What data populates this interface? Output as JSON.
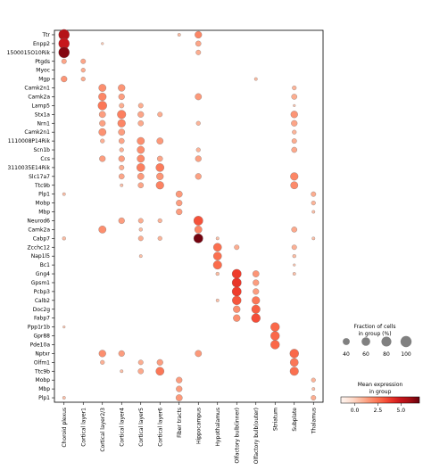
{
  "chart_data": {
    "type": "dotplot",
    "genes": [
      "Ttr",
      "Enpp2",
      "1500015O10Rik",
      "Ptgds",
      "Myoc",
      "Mgp",
      "Camk2n1",
      "Camk2a",
      "Lamp5",
      "Stx1a",
      "Nrn1",
      "Camk2n1",
      "1110008P14Rik",
      "Scn1b",
      "Ccs",
      "3110035E14Rik",
      "Slc17a7",
      "Ttc9b",
      "Plp1",
      "Mobp",
      "Mbp",
      "Neurod6",
      "Camk2a",
      "Cabp7",
      "Zcchc12",
      "Nap1l5",
      "Bc1",
      "Gng4",
      "Gpsm1",
      "Pcbp3",
      "Calb2",
      "Doc2g",
      "Fabp7",
      "Ppp1r1b",
      "Gpr88",
      "Pde10a",
      "Nptxr",
      "Olfm1",
      "Ttc9b",
      "Mobp",
      "Mbp",
      "Plp1"
    ],
    "groups": [
      "Choroid plexus",
      "Cortical layer1",
      "Cortical layer2/3",
      "Cortical layer4",
      "Cortical layer5",
      "Cortical layer6",
      "Fiber tracts",
      "Hippocampus",
      "Hypothalamus",
      "Olfactory bulb(inner)",
      "Olfactory bulb(outer)",
      "Striatum",
      "Subplate",
      "Thalamus"
    ],
    "cells": [
      [
        0,
        0,
        95,
        5.5
      ],
      [
        0,
        7,
        40,
        2.0
      ],
      [
        0,
        6,
        8,
        0.6
      ],
      [
        1,
        0,
        95,
        5.0
      ],
      [
        1,
        7,
        25,
        1.2
      ],
      [
        1,
        2,
        5,
        0.2
      ],
      [
        2,
        0,
        95,
        6.5
      ],
      [
        2,
        7,
        20,
        1.0
      ],
      [
        3,
        0,
        20,
        1.2
      ],
      [
        3,
        1,
        20,
        1.2
      ],
      [
        4,
        1,
        15,
        1.0
      ],
      [
        5,
        0,
        30,
        1.6
      ],
      [
        5,
        1,
        15,
        1.0
      ],
      [
        5,
        10,
        8,
        0.6
      ],
      [
        6,
        2,
        45,
        1.8
      ],
      [
        6,
        3,
        40,
        1.6
      ],
      [
        6,
        12,
        15,
        0.8
      ],
      [
        7,
        2,
        50,
        2.0
      ],
      [
        7,
        3,
        30,
        1.4
      ],
      [
        7,
        7,
        35,
        1.5
      ],
      [
        7,
        12,
        25,
        1.0
      ],
      [
        8,
        2,
        65,
        2.4
      ],
      [
        8,
        3,
        20,
        1.0
      ],
      [
        8,
        4,
        20,
        1.0
      ],
      [
        8,
        12,
        5,
        0.3
      ],
      [
        9,
        2,
        35,
        1.4
      ],
      [
        9,
        3,
        60,
        2.2
      ],
      [
        9,
        4,
        30,
        1.2
      ],
      [
        9,
        5,
        20,
        1.0
      ],
      [
        9,
        12,
        40,
        1.6
      ],
      [
        10,
        2,
        30,
        1.3
      ],
      [
        10,
        3,
        50,
        2.0
      ],
      [
        10,
        4,
        25,
        1.1
      ],
      [
        10,
        7,
        15,
        0.8
      ],
      [
        10,
        12,
        30,
        1.2
      ],
      [
        11,
        2,
        45,
        1.7
      ],
      [
        11,
        3,
        35,
        1.4
      ],
      [
        11,
        12,
        15,
        0.8
      ],
      [
        12,
        2,
        15,
        0.9
      ],
      [
        12,
        3,
        25,
        1.2
      ],
      [
        12,
        4,
        45,
        1.8
      ],
      [
        12,
        5,
        35,
        1.5
      ],
      [
        12,
        12,
        20,
        1.0
      ],
      [
        13,
        3,
        15,
        0.9
      ],
      [
        13,
        4,
        45,
        1.8
      ],
      [
        13,
        7,
        15,
        0.8
      ],
      [
        13,
        12,
        25,
        1.1
      ],
      [
        14,
        2,
        30,
        1.4
      ],
      [
        14,
        3,
        30,
        1.4
      ],
      [
        14,
        4,
        45,
        1.9
      ],
      [
        14,
        5,
        25,
        1.2
      ],
      [
        14,
        7,
        30,
        1.3
      ],
      [
        15,
        3,
        20,
        1.0
      ],
      [
        15,
        4,
        55,
        2.2
      ],
      [
        15,
        5,
        55,
        2.3
      ],
      [
        16,
        3,
        25,
        1.2
      ],
      [
        16,
        4,
        35,
        1.5
      ],
      [
        16,
        5,
        40,
        1.6
      ],
      [
        16,
        7,
        30,
        1.3
      ],
      [
        16,
        12,
        50,
        2.0
      ],
      [
        17,
        3,
        8,
        0.5
      ],
      [
        17,
        4,
        25,
        1.2
      ],
      [
        17,
        5,
        50,
        2.1
      ],
      [
        17,
        12,
        45,
        1.9
      ],
      [
        18,
        0,
        8,
        0.5
      ],
      [
        18,
        6,
        35,
        1.5
      ],
      [
        18,
        13,
        20,
        1.0
      ],
      [
        19,
        6,
        30,
        1.4
      ],
      [
        19,
        13,
        15,
        0.8
      ],
      [
        20,
        6,
        30,
        1.4
      ],
      [
        20,
        13,
        8,
        0.5
      ],
      [
        21,
        3,
        30,
        1.4
      ],
      [
        21,
        4,
        20,
        1.0
      ],
      [
        21,
        5,
        15,
        0.8
      ],
      [
        21,
        7,
        70,
        3.3
      ],
      [
        22,
        2,
        45,
        1.8
      ],
      [
        22,
        4,
        10,
        0.6
      ],
      [
        22,
        7,
        45,
        2.0
      ],
      [
        22,
        12,
        25,
        1.1
      ],
      [
        23,
        0,
        10,
        0.6
      ],
      [
        23,
        4,
        20,
        1.0
      ],
      [
        23,
        5,
        15,
        0.8
      ],
      [
        23,
        7,
        70,
        6.8
      ],
      [
        23,
        8,
        8,
        0.5
      ],
      [
        23,
        13,
        8,
        0.5
      ],
      [
        24,
        8,
        55,
        2.6
      ],
      [
        24,
        9,
        20,
        1.0
      ],
      [
        24,
        12,
        20,
        0.9
      ],
      [
        25,
        4,
        8,
        0.5
      ],
      [
        25,
        8,
        55,
        2.6
      ],
      [
        25,
        12,
        10,
        0.6
      ],
      [
        26,
        8,
        60,
        2.7
      ],
      [
        26,
        12,
        5,
        0.3
      ],
      [
        27,
        8,
        10,
        0.6
      ],
      [
        27,
        9,
        70,
        3.8
      ],
      [
        27,
        10,
        35,
        1.6
      ],
      [
        27,
        12,
        8,
        0.5
      ],
      [
        28,
        9,
        70,
        4.0
      ],
      [
        28,
        10,
        30,
        1.4
      ],
      [
        29,
        9,
        70,
        3.8
      ],
      [
        29,
        10,
        30,
        1.4
      ],
      [
        30,
        8,
        8,
        0.5
      ],
      [
        30,
        9,
        65,
        3.2
      ],
      [
        30,
        10,
        50,
        2.4
      ],
      [
        31,
        9,
        40,
        1.8
      ],
      [
        31,
        10,
        60,
        3.0
      ],
      [
        32,
        9,
        40,
        1.8
      ],
      [
        32,
        10,
        65,
        3.4
      ],
      [
        33,
        0,
        5,
        0.3
      ],
      [
        33,
        11,
        65,
        2.8
      ],
      [
        34,
        11,
        65,
        2.8
      ],
      [
        35,
        11,
        65,
        2.8
      ],
      [
        36,
        2,
        40,
        1.8
      ],
      [
        36,
        3,
        30,
        1.4
      ],
      [
        36,
        7,
        35,
        1.5
      ],
      [
        36,
        12,
        65,
        2.8
      ],
      [
        37,
        2,
        15,
        0.9
      ],
      [
        37,
        4,
        20,
        1.0
      ],
      [
        37,
        5,
        30,
        1.4
      ],
      [
        37,
        12,
        55,
        2.4
      ],
      [
        38,
        3,
        8,
        0.5
      ],
      [
        38,
        4,
        25,
        1.1
      ],
      [
        38,
        5,
        55,
        2.4
      ],
      [
        38,
        12,
        60,
        2.6
      ],
      [
        39,
        6,
        30,
        1.4
      ],
      [
        39,
        13,
        15,
        0.8
      ],
      [
        40,
        6,
        30,
        1.4
      ],
      [
        40,
        13,
        8,
        0.5
      ],
      [
        41,
        0,
        8,
        0.5
      ],
      [
        41,
        6,
        35,
        1.5
      ],
      [
        41,
        13,
        20,
        1.0
      ]
    ],
    "size_legend": {
      "title_line1": "Fraction of cells",
      "title_line2": "in group (%)",
      "ticks": [
        "40",
        "60",
        "80",
        "100"
      ],
      "values": [
        40,
        60,
        80,
        100
      ]
    },
    "color_legend": {
      "title_line1": "Mean expression",
      "title_line2": "in group",
      "ticks": [
        "0.0",
        "2.5",
        "5.0"
      ],
      "tick_values": [
        0,
        2.5,
        5
      ],
      "range": [
        -1.5,
        7
      ],
      "colormap": "Reds"
    }
  }
}
